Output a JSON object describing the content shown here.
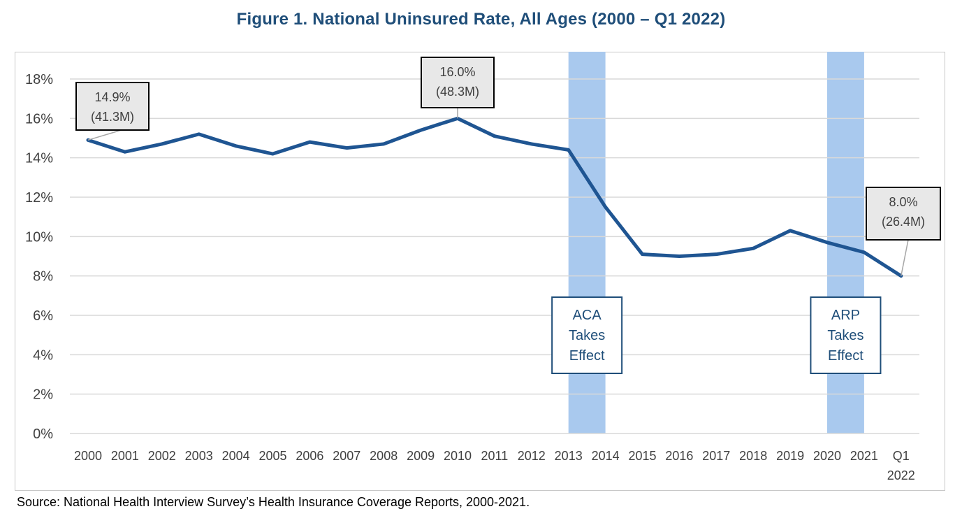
{
  "title": "Figure 1. National Uninsured Rate, All Ages (2000 – Q1 2022)",
  "source": "Source: National Health Interview Survey’s Health Insurance Coverage Reports, 2000-2021.",
  "colors": {
    "line": "#1f5592",
    "band": "#a9c9ee",
    "grid": "#d9d9d9",
    "title": "#1f4e79",
    "policy_box_border": "#1f4e79",
    "policy_box_text": "#1f4e79",
    "callout_fill": "#e8e8e8",
    "callout_border": "#000000",
    "axis_text": "#404040"
  },
  "chart_data": {
    "type": "line",
    "categories": [
      "2000",
      "2001",
      "2002",
      "2003",
      "2004",
      "2005",
      "2006",
      "2007",
      "2008",
      "2009",
      "2010",
      "2011",
      "2012",
      "2013",
      "2014",
      "2015",
      "2016",
      "2017",
      "2018",
      "2019",
      "2020",
      "2021",
      "Q1 2022"
    ],
    "series": [
      {
        "values": [
          14.9,
          14.3,
          14.7,
          15.2,
          14.6,
          14.2,
          14.8,
          14.5,
          14.7,
          15.4,
          16.0,
          15.1,
          14.7,
          14.4,
          11.5,
          9.1,
          9.0,
          9.1,
          9.4,
          10.3,
          9.7,
          9.2,
          8.0
        ]
      }
    ],
    "yticks": [
      "0%",
      "2%",
      "4%",
      "6%",
      "8%",
      "10%",
      "12%",
      "14%",
      "16%",
      "18%"
    ],
    "ylim": [
      0,
      18
    ],
    "grid": true,
    "shaded_bands": [
      {
        "from": "2013",
        "to": "2014",
        "label_lines": [
          "ACA",
          "Takes",
          "Effect"
        ]
      },
      {
        "from": "2020",
        "to": "2021",
        "label_lines": [
          "ARP",
          "Takes",
          "Effect"
        ]
      }
    ],
    "callouts": [
      {
        "category": "2000",
        "lines": [
          "14.9%",
          "(41.3M)"
        ]
      },
      {
        "category": "2010",
        "lines": [
          "16.0%",
          "(48.3M)"
        ]
      },
      {
        "category": "Q1 2022",
        "lines": [
          "8.0%",
          "(26.4M)"
        ]
      }
    ]
  }
}
